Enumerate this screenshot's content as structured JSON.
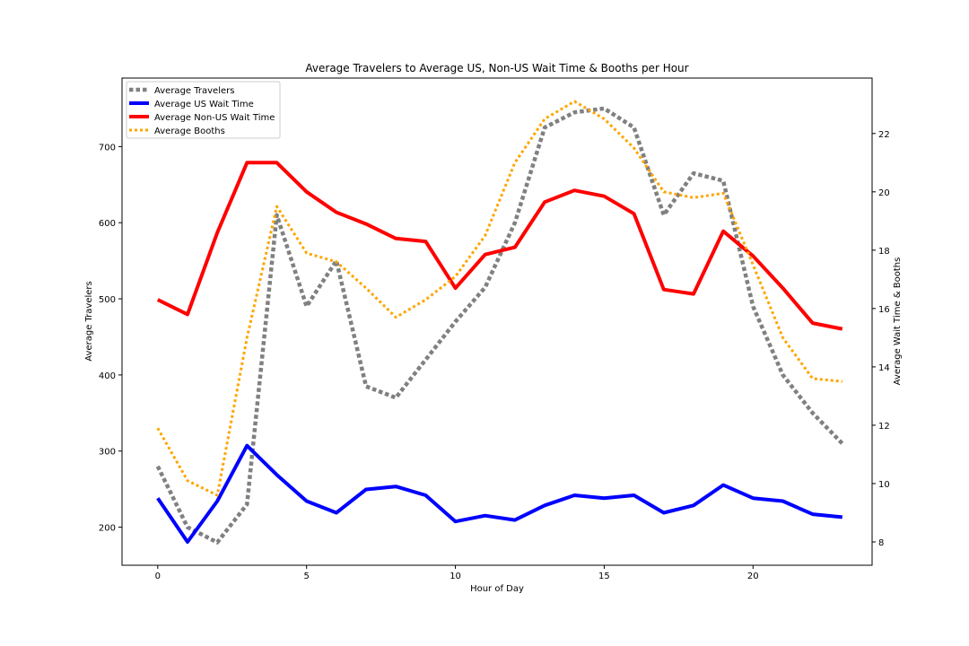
{
  "chart_data": {
    "type": "line",
    "title": "Average Travelers to Average US, Non-US Wait Time & Booths per Hour",
    "xlabel": "Hour of Day",
    "ylabel_left": "Average Travelers",
    "ylabel_right": "Average Wait Time & Booths",
    "x": [
      0,
      1,
      2,
      3,
      4,
      5,
      6,
      7,
      8,
      9,
      10,
      11,
      12,
      13,
      14,
      15,
      16,
      17,
      18,
      19,
      20,
      21,
      22,
      23
    ],
    "x_ticks": [
      0,
      5,
      10,
      15,
      20
    ],
    "xlim": [
      -1.2,
      24.0
    ],
    "ylim_left": [
      150,
      790
    ],
    "ylim_right": [
      7.2,
      23.9
    ],
    "y_ticks_left": [
      200,
      300,
      400,
      500,
      600,
      700
    ],
    "y_ticks_right": [
      8,
      10,
      12,
      14,
      16,
      18,
      20,
      22
    ],
    "legend_position": "top-left",
    "series": [
      {
        "name": "Average Travelers",
        "axis": "left",
        "color": "#808080",
        "style": "dotted",
        "values": [
          280,
          200,
          180,
          230,
          610,
          490,
          550,
          385,
          370,
          420,
          470,
          515,
          600,
          725,
          745,
          750,
          725,
          610,
          665,
          655,
          490,
          400,
          350,
          310
        ]
      },
      {
        "name": "Average US Wait Time",
        "axis": "right",
        "color": "#0000ff",
        "style": "solid",
        "values": [
          9.5,
          8.0,
          9.4,
          11.3,
          10.3,
          9.4,
          9.0,
          9.8,
          9.9,
          9.6,
          8.7,
          8.9,
          8.75,
          9.25,
          9.6,
          9.5,
          9.6,
          9.0,
          9.25,
          9.95,
          9.5,
          9.4,
          8.95,
          8.85
        ]
      },
      {
        "name": "Average Non-US Wait Time",
        "axis": "right",
        "color": "#ff0000",
        "style": "solid",
        "values": [
          16.3,
          15.8,
          18.6,
          21.0,
          21.0,
          20.0,
          19.3,
          18.9,
          18.4,
          18.3,
          16.7,
          17.85,
          18.1,
          19.65,
          20.05,
          19.85,
          19.25,
          16.65,
          16.5,
          18.65,
          17.8,
          16.7,
          15.5,
          15.3
        ]
      },
      {
        "name": "Average Booths",
        "axis": "right",
        "color": "#ffa500",
        "style": "dotted",
        "values": [
          11.9,
          10.1,
          9.6,
          15.0,
          19.5,
          17.9,
          17.6,
          16.7,
          15.7,
          16.3,
          17.1,
          18.5,
          21.0,
          22.5,
          23.1,
          22.5,
          21.5,
          20.0,
          19.8,
          19.95,
          17.5,
          15.0,
          13.6,
          13.5
        ]
      }
    ]
  }
}
